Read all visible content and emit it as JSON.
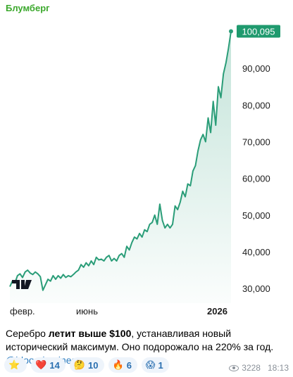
{
  "sender": "Блумберг",
  "chart_data": {
    "type": "line",
    "ylim": [
      26000,
      102500
    ],
    "yticks": [
      "30,000",
      "40,000",
      "50,000",
      "60,000",
      "70,000",
      "80,000",
      "90,000"
    ],
    "ytick_values": [
      30000,
      40000,
      50000,
      60000,
      70000,
      80000,
      90000
    ],
    "last_value_label": "100,095",
    "last_value": 100095,
    "x_labels": [
      "февр.",
      "июнь",
      "2026"
    ],
    "line_color": "#2a9d78",
    "label_bg": "#1f9a6e",
    "series": [
      {
        "values": [
          30500,
          32000,
          31500,
          33500,
          34000,
          33000,
          34500,
          35000,
          34200,
          33800,
          34500,
          34000,
          33200,
          29500,
          31000,
          32500,
          32000,
          33500,
          32500,
          33500,
          32800,
          33800,
          33000,
          33500,
          33200,
          33800,
          34500,
          35000,
          36500,
          35800,
          37000,
          36200,
          37500,
          36500,
          38500,
          37800,
          38000,
          37500,
          38500,
          39000,
          37500,
          38200,
          37500,
          39000,
          39500,
          38500,
          41500,
          40500,
          42500,
          44000,
          43500,
          45000,
          44000,
          46000,
          45500,
          47500,
          48000,
          50000,
          47500,
          53000,
          48500,
          46500,
          47500,
          46500,
          47500,
          52500,
          51500,
          53500,
          56500,
          55000,
          58500,
          58000,
          62000,
          63500,
          67500,
          70500,
          72000,
          70000,
          76500,
          72500,
          81000,
          74500,
          85000,
          82000,
          88500,
          91500,
          95500,
          100095
        ]
      }
    ]
  },
  "caption": {
    "p1": "Серебро ",
    "bold": "летит выше $100",
    "p2": ", устанавливая новый исторический максимум. Оно подорожало на 220% за год. ",
    "link": "@bloombusiness"
  },
  "reactions": [
    {
      "emoji": "⭐",
      "count": ""
    },
    {
      "emoji": "❤️",
      "count": "14"
    },
    {
      "emoji": "🤔",
      "count": "10"
    },
    {
      "emoji": "🔥",
      "count": "6"
    },
    {
      "emoji": "😱",
      "count": "1"
    }
  ],
  "views": "3228",
  "time": "18:13"
}
